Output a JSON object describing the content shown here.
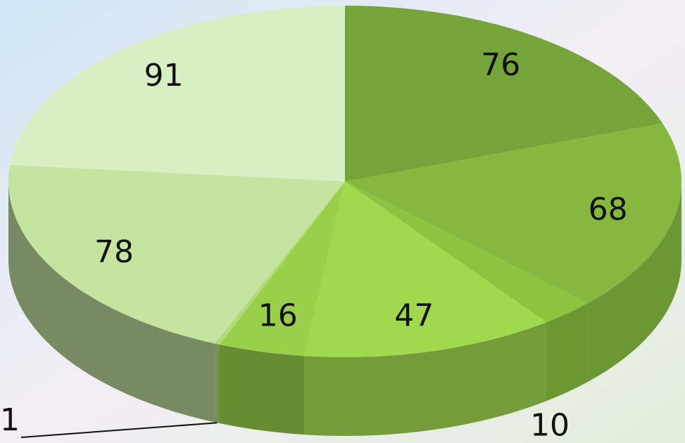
{
  "chart_data": {
    "type": "pie",
    "categories": [
      null,
      null,
      null,
      null,
      null,
      null,
      null,
      null
    ],
    "values": [
      76,
      68,
      10,
      47,
      16,
      1,
      78,
      91
    ],
    "colors": [
      "#76a33a",
      "#86b840",
      "#8cc43f",
      "#a0d94e",
      "#98d04a",
      "#b2da78",
      "#c4e4a0",
      "#d8efc4"
    ]
  }
}
